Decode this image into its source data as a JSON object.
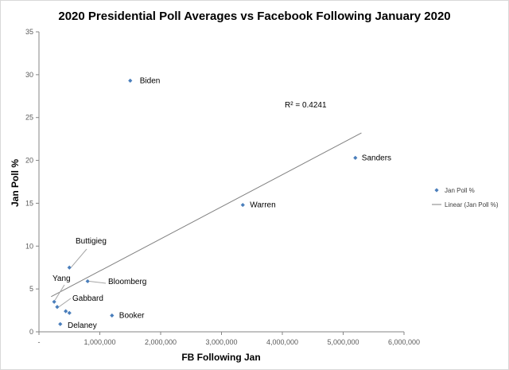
{
  "chart_data": {
    "type": "scatter",
    "title": "2020 Presidential Poll Averages vs Facebook Following January 2020",
    "xlabel": "FB Following Jan",
    "ylabel": "Jan Poll %",
    "xlim": [
      0,
      6000000
    ],
    "ylim": [
      0,
      35
    ],
    "x_ticks": [
      0,
      1000000,
      2000000,
      3000000,
      4000000,
      5000000,
      6000000
    ],
    "x_tick_labels": [
      "-",
      "1,000,000",
      "2,000,000",
      "3,000,000",
      "4,000,000",
      "5,000,000",
      "6,000,000"
    ],
    "y_ticks": [
      0,
      5,
      10,
      15,
      20,
      25,
      30,
      35
    ],
    "y_tick_labels": [
      "0",
      "5",
      "10",
      "15",
      "20",
      "25",
      "30",
      "35"
    ],
    "grid": false,
    "marker_color": "#4a7ebb",
    "trendline_color": "#808080",
    "series": [
      {
        "name": "Jan Poll %",
        "points": [
          {
            "label": "Biden",
            "x": 1500000,
            "y": 29.3
          },
          {
            "label": "Sanders",
            "x": 5200000,
            "y": 20.3
          },
          {
            "label": "Warren",
            "x": 3350000,
            "y": 14.8
          },
          {
            "label": "Buttigieg",
            "x": 500000,
            "y": 7.5
          },
          {
            "label": "Bloomberg",
            "x": 800000,
            "y": 5.9
          },
          {
            "label": "Yang",
            "x": 250000,
            "y": 3.5
          },
          {
            "label": "Gabbard",
            "x": 300000,
            "y": 2.9
          },
          {
            "label": "",
            "x": 440000,
            "y": 2.4
          },
          {
            "label": "",
            "x": 500000,
            "y": 2.2
          },
          {
            "label": "Booker",
            "x": 1200000,
            "y": 1.9
          },
          {
            "label": "Delaney",
            "x": 350000,
            "y": 0.9
          }
        ]
      }
    ],
    "trendline": {
      "type": "linear",
      "name": "Linear (Jan Poll %)",
      "r_squared_label": "R² = 0.4241",
      "x_range": [
        200000,
        5300000
      ],
      "y_at_start": 4.1,
      "y_at_end": 23.2
    },
    "legend": {
      "position": "right",
      "entries": [
        "Jan Poll %",
        "Linear (Jan Poll %)"
      ]
    }
  }
}
